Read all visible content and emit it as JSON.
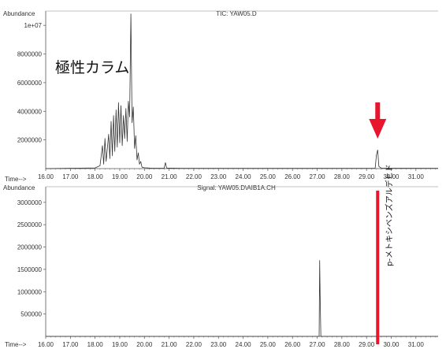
{
  "chart_data": [
    {
      "type": "line",
      "title": "TIC: YAW05.D",
      "ylabel": "Abundance",
      "xlabel": "Time-->",
      "xlim": [
        16.0,
        31.9
      ],
      "ylim": [
        0,
        11000000
      ],
      "x_ticks": [
        "16.00",
        "17.00",
        "18.00",
        "19.00",
        "20.00",
        "21.00",
        "22.00",
        "23.00",
        "24.00",
        "25.00",
        "26.00",
        "27.00",
        "28.00",
        "29.00",
        "30.00",
        "31.00"
      ],
      "y_ticks": [
        {
          "value": 2000000,
          "label": "2000000"
        },
        {
          "value": 4000000,
          "label": "4000000"
        },
        {
          "value": 6000000,
          "label": "6000000"
        },
        {
          "value": 8000000,
          "label": "8000000"
        },
        {
          "value": 10000000,
          "label": "1e+07"
        }
      ],
      "annotation": "極性カラム",
      "arrow_at_x": 29.45,
      "arrow_color": "#e8162d",
      "series": [
        {
          "x": [
            16.0,
            18.0,
            18.2,
            18.3,
            18.35,
            18.4,
            18.45,
            18.55,
            18.6,
            18.65,
            18.7,
            18.75,
            18.8,
            18.85,
            18.9,
            18.95,
            19.0,
            19.05,
            19.1,
            19.15,
            19.2,
            19.25,
            19.3,
            19.35,
            19.4,
            19.45,
            19.5,
            19.55,
            19.6,
            19.65,
            19.7,
            19.75,
            19.8,
            19.85,
            19.9,
            20.0,
            20.3,
            20.8,
            20.85,
            20.9,
            21.5,
            29.35,
            29.4,
            29.45,
            29.5,
            29.6,
            31.9
          ],
          "y": [
            0,
            50000,
            200000,
            1600000,
            300000,
            2100000,
            500000,
            2400000,
            700000,
            3300000,
            900000,
            3700000,
            1200000,
            4100000,
            1500000,
            4600000,
            1800000,
            4400000,
            1600000,
            3700000,
            2100000,
            4200000,
            1900000,
            4700000,
            3600000,
            10800000,
            3200000,
            4300000,
            1400000,
            2300000,
            600000,
            1100000,
            300000,
            500000,
            100000,
            60000,
            30000,
            30000,
            420000,
            40000,
            20000,
            20000,
            950000,
            1300000,
            150000,
            30000,
            20000
          ]
        }
      ]
    },
    {
      "type": "line",
      "title": "Signal: YAW05.D\\AIB1A.CH",
      "ylabel": "Abundance",
      "xlabel": "Time-->",
      "xlim": [
        16.0,
        31.9
      ],
      "ylim": [
        0,
        3350000
      ],
      "x_ticks": [
        "16.00",
        "17.00",
        "18.00",
        "19.00",
        "20.00",
        "21.00",
        "22.00",
        "23.00",
        "24.00",
        "25.00",
        "26.00",
        "27.00",
        "28.00",
        "29.00",
        "30.00",
        "31.00"
      ],
      "y_ticks": [
        {
          "value": 500000,
          "label": "500000"
        },
        {
          "value": 1000000,
          "label": "1000000"
        },
        {
          "value": 1500000,
          "label": "1500000"
        },
        {
          "value": 2000000,
          "label": "2000000"
        },
        {
          "value": 2500000,
          "label": "2500000"
        },
        {
          "value": 3000000,
          "label": "3000000"
        }
      ],
      "annotation": "p-メトキシベンズアルデヒド",
      "marker_line_x": 29.45,
      "marker_line_color": "#e8162d",
      "series": [
        {
          "x": [
            16.0,
            27.08,
            27.1,
            27.12,
            27.15,
            31.9
          ],
          "y": [
            0,
            0,
            1700000,
            900000,
            0,
            0
          ]
        }
      ]
    }
  ]
}
